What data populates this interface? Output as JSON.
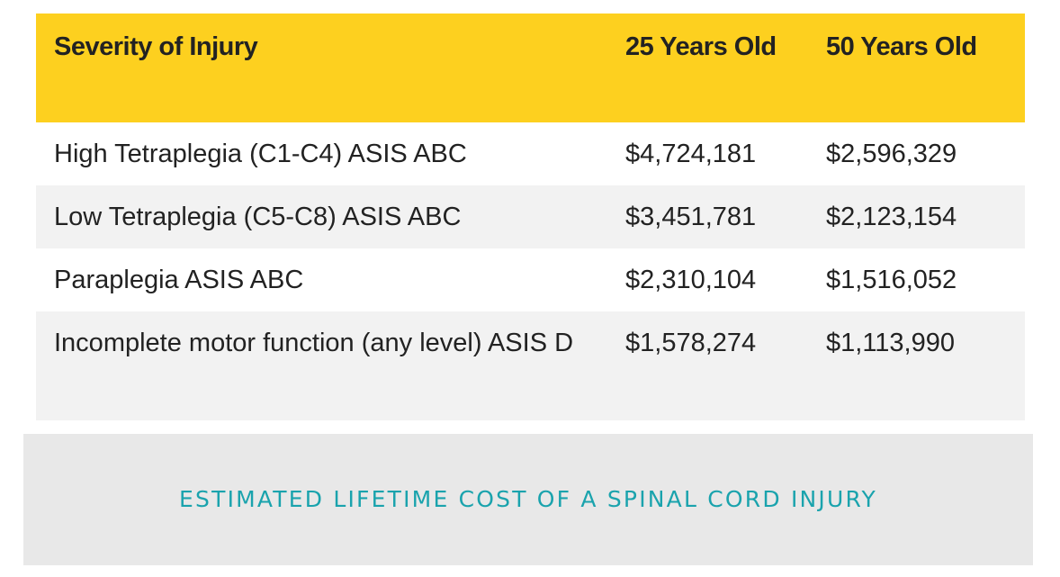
{
  "table": {
    "headers": [
      "Severity of Injury",
      "25 Years Old",
      "50 Years Old"
    ],
    "rows": [
      [
        "High Tetraplegia (C1-C4) ASIS ABC",
        "$4,724,181",
        "$2,596,329"
      ],
      [
        "Low Tetraplegia (C5-C8) ASIS ABC",
        "$3,451,781",
        "$2,123,154"
      ],
      [
        "Paraplegia ASIS ABC",
        "$2,310,104",
        "$1,516,052"
      ],
      [
        "Incomplete motor function (any level) ASIS D",
        "$1,578,274",
        "$1,113,990"
      ]
    ]
  },
  "caption": "ESTIMATED LIFETIME COST OF A SPINAL CORD INJURY",
  "colors": {
    "header_bg": "#fdd01f",
    "stripe_bg": "#f2f2f2",
    "caption_bg": "#e8e8e8",
    "caption_text": "#1aa3ad"
  }
}
